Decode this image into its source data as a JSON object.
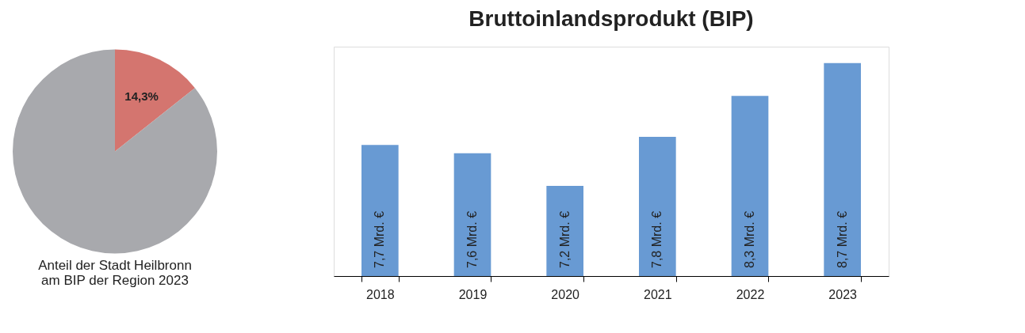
{
  "chart_data": [
    {
      "type": "pie",
      "title": "Anteil der Stadt Heilbronn\nam BIP der Region 2023",
      "categories": [
        null,
        null
      ],
      "values": [
        14.3,
        85.7
      ],
      "colors": [
        "#d4756f",
        "#a8a9ad"
      ],
      "value_labels": [
        "14,3%",
        null
      ]
    },
    {
      "type": "bar",
      "title": "Bruttoinlandsprodukt (BIP)",
      "categories": [
        "2018",
        "2019",
        "2020",
        "2021",
        "2022",
        "2023"
      ],
      "values": [
        7.7,
        7.6,
        7.2,
        7.8,
        8.3,
        8.7
      ],
      "color": "#689ad3",
      "ylim": [
        6.1,
        8.9
      ],
      "value_labels": [
        "7,7 Mrd. €",
        "7,6 Mrd. €",
        "7,2 Mrd. €",
        "7,8 Mrd. €",
        "8,3 Mrd. €",
        "8,7 Mrd. €"
      ]
    }
  ]
}
